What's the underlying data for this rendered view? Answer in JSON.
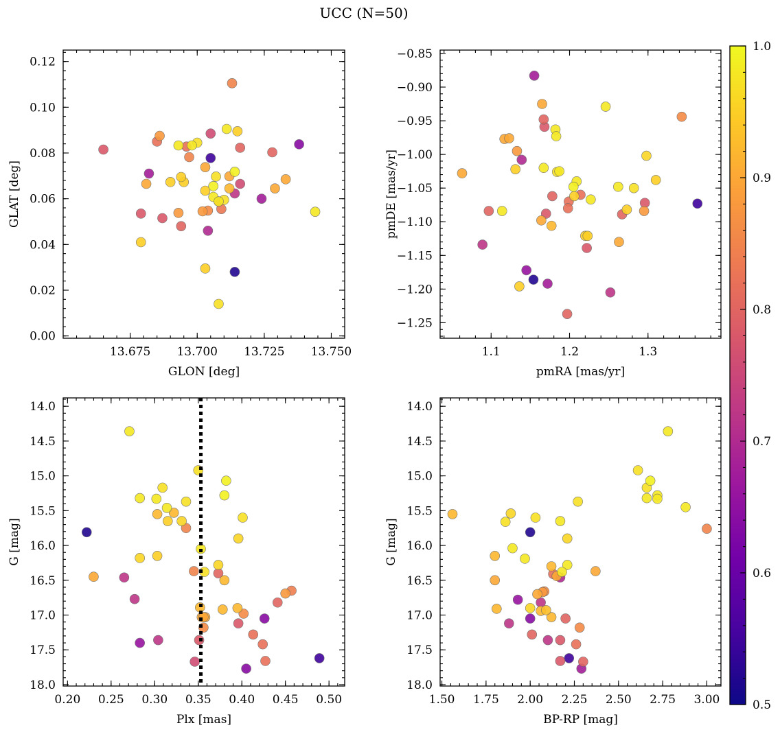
{
  "figure_title": "UCC (N=50)",
  "colors": {
    "frame": "#000000",
    "marker_edge": "#666666",
    "vline": "#000000"
  },
  "chart_data": [
    {
      "id": "glon-glat",
      "type": "scatter",
      "xlabel": "GLON [deg]",
      "ylabel": "GLAT [deg]",
      "xlim": [
        13.65,
        13.755
      ],
      "ylim": [
        -0.001,
        0.125
      ],
      "xticks": [
        13.675,
        13.7,
        13.725,
        13.75
      ],
      "xtick_labels": [
        "13.675",
        "13.700",
        "13.725",
        "13.750"
      ],
      "yticks": [
        0.0,
        0.02,
        0.04,
        0.06,
        0.08,
        0.1,
        0.12
      ],
      "ytick_labels": [
        "0.00",
        "0.02",
        "0.04",
        "0.06",
        "0.08",
        "0.10",
        "0.12"
      ],
      "x": [
        13.713,
        13.665,
        13.686,
        13.685,
        13.682,
        13.681,
        13.679,
        13.679,
        13.687,
        13.69,
        13.693,
        13.695,
        13.693,
        13.694,
        13.696,
        13.697,
        13.698,
        13.7,
        13.702,
        13.703,
        13.704,
        13.703,
        13.705,
        13.705,
        13.704,
        13.706,
        13.706,
        13.707,
        13.708,
        13.709,
        13.71,
        13.711,
        13.712,
        13.712,
        13.714,
        13.714,
        13.715,
        13.716,
        13.716,
        13.724,
        13.728,
        13.729,
        13.733,
        13.738,
        13.744,
        13.703,
        13.708,
        13.714,
        13.708,
        13.694
      ],
      "y": [
        0.1105,
        0.0815,
        0.0875,
        0.085,
        0.071,
        0.0665,
        0.0535,
        0.041,
        0.0515,
        0.0673,
        0.0833,
        0.0673,
        0.0538,
        0.048,
        0.0828,
        0.0782,
        0.0833,
        0.0845,
        0.0545,
        0.0738,
        0.046,
        0.0635,
        0.0885,
        0.0778,
        0.0548,
        0.0608,
        0.0655,
        0.0697,
        0.0588,
        0.0555,
        0.0595,
        0.0905,
        0.0645,
        0.0698,
        0.0718,
        0.0623,
        0.0895,
        0.0665,
        0.0823,
        0.06,
        0.0803,
        0.0645,
        0.0685,
        0.0838,
        0.0543,
        0.0295,
        0.014,
        0.028,
        0.0588,
        0.0695
      ],
      "c": [
        0.85,
        0.78,
        0.88,
        0.82,
        0.68,
        0.9,
        0.78,
        0.95,
        0.78,
        0.95,
        0.98,
        0.95,
        0.88,
        0.8,
        0.82,
        0.85,
        0.98,
        0.97,
        0.88,
        0.9,
        0.7,
        0.95,
        0.76,
        0.55,
        0.86,
        0.98,
        0.99,
        0.97,
        0.98,
        0.83,
        0.97,
        0.98,
        0.92,
        0.9,
        0.99,
        0.72,
        0.95,
        0.76,
        0.8,
        0.68,
        0.8,
        0.9,
        0.9,
        0.64,
        0.98,
        0.95,
        0.97,
        0.52,
        0.82,
        0.95
      ]
    },
    {
      "id": "pmra-pmde",
      "type": "scatter",
      "xlabel": "pmRA [mas/yr]",
      "ylabel": "pmDE [mas/yr]",
      "xlim": [
        1.035,
        1.393
      ],
      "ylim": [
        -1.273,
        -0.845
      ],
      "xticks": [
        1.1,
        1.2,
        1.3
      ],
      "xtick_labels": [
        "1.1",
        "1.2",
        "1.3"
      ],
      "yticks": [
        -1.25,
        -1.2,
        -1.15,
        -1.1,
        -1.05,
        -1.0,
        -0.95,
        -0.9,
        -0.85
      ],
      "ytick_labels": [
        "−1.25",
        "−1.20",
        "−1.15",
        "−1.10",
        "−1.05",
        "−1.00",
        "−0.95",
        "−0.90",
        "−0.85"
      ],
      "x": [
        1.155,
        1.165,
        1.167,
        1.168,
        1.182,
        1.183,
        1.117,
        1.123,
        1.133,
        1.139,
        1.131,
        1.167,
        1.184,
        1.187,
        1.209,
        1.205,
        1.214,
        1.206,
        1.199,
        1.198,
        1.227,
        1.246,
        1.262,
        1.263,
        1.267,
        1.273,
        1.282,
        1.295,
        1.296,
        1.298,
        1.31,
        1.343,
        1.363,
        1.063,
        1.097,
        1.114,
        1.164,
        1.17,
        1.177,
        1.178,
        1.22,
        1.222,
        1.252,
        1.154,
        1.172,
        1.197,
        1.089,
        1.145,
        1.136,
        1.223
      ],
      "y": [
        -0.883,
        -0.925,
        -0.948,
        -0.959,
        -0.963,
        -0.973,
        -0.977,
        -0.976,
        -0.995,
        -1.008,
        -1.022,
        -1.02,
        -1.026,
        -1.025,
        -1.04,
        -1.048,
        -1.06,
        -1.062,
        -1.07,
        -1.08,
        -1.067,
        -0.929,
        -1.048,
        -1.13,
        -1.089,
        -1.082,
        -1.05,
        -1.084,
        -1.072,
        -1.002,
        -1.038,
        -0.944,
        -1.073,
        -1.028,
        -1.084,
        -1.084,
        -1.098,
        -1.088,
        -1.106,
        -1.062,
        -1.121,
        -1.139,
        -1.205,
        -1.186,
        -1.192,
        -1.237,
        -1.134,
        -1.172,
        -1.196,
        -1.121
      ],
      "c": [
        0.68,
        0.9,
        0.8,
        0.78,
        0.98,
        0.98,
        0.9,
        0.9,
        0.88,
        0.7,
        0.95,
        0.98,
        0.97,
        0.98,
        0.98,
        0.99,
        0.82,
        0.95,
        0.82,
        0.82,
        0.98,
        0.98,
        0.98,
        0.9,
        0.8,
        0.95,
        0.97,
        0.88,
        0.78,
        0.96,
        0.95,
        0.86,
        0.55,
        0.9,
        0.8,
        0.98,
        0.9,
        0.78,
        0.92,
        0.8,
        0.95,
        0.78,
        0.72,
        0.52,
        0.68,
        0.8,
        0.72,
        0.66,
        0.95,
        0.95
      ]
    },
    {
      "id": "plx-g",
      "type": "scatter",
      "xlabel": "Plx [mas]",
      "ylabel": "G [mag]",
      "xlim": [
        0.195,
        0.518
      ],
      "ylim": [
        18.02,
        13.88
      ],
      "inverted_y": true,
      "xticks": [
        0.2,
        0.25,
        0.3,
        0.35,
        0.4,
        0.45,
        0.5
      ],
      "xtick_labels": [
        "0.20",
        "0.25",
        "0.30",
        "0.35",
        "0.40",
        "0.45",
        "0.50"
      ],
      "yticks": [
        14.0,
        14.5,
        15.0,
        15.5,
        16.0,
        16.5,
        17.0,
        17.5,
        18.0
      ],
      "ytick_labels": [
        "14.0",
        "14.5",
        "15.0",
        "15.5",
        "16.0",
        "16.5",
        "17.0",
        "17.5",
        "18.0"
      ],
      "vline": {
        "x": 0.353,
        "style": "dotted"
      },
      "x": [
        0.271,
        0.35,
        0.382,
        0.309,
        0.283,
        0.302,
        0.314,
        0.336,
        0.38,
        0.303,
        0.322,
        0.315,
        0.401,
        0.222,
        0.331,
        0.353,
        0.396,
        0.373,
        0.283,
        0.303,
        0.357,
        0.345,
        0.23,
        0.373,
        0.38,
        0.265,
        0.378,
        0.277,
        0.395,
        0.352,
        0.402,
        0.358,
        0.356,
        0.426,
        0.457,
        0.45,
        0.441,
        0.396,
        0.413,
        0.424,
        0.283,
        0.304,
        0.351,
        0.346,
        0.427,
        0.405,
        0.489,
        0.354,
        0.356,
        0.336
      ],
      "y": [
        14.36,
        14.92,
        15.07,
        15.17,
        15.32,
        15.33,
        15.46,
        15.37,
        15.28,
        15.55,
        15.53,
        15.65,
        15.6,
        15.81,
        15.65,
        16.05,
        15.9,
        16.28,
        16.18,
        16.15,
        16.38,
        16.37,
        16.45,
        16.4,
        16.5,
        16.46,
        16.92,
        16.77,
        16.9,
        16.89,
        16.98,
        17.03,
        17.18,
        17.05,
        16.65,
        16.69,
        16.82,
        17.12,
        17.28,
        17.42,
        17.4,
        17.36,
        17.36,
        17.67,
        17.66,
        17.77,
        17.62,
        17.03,
        17.03,
        15.75
      ],
      "c": [
        0.98,
        0.97,
        0.99,
        0.97,
        0.98,
        0.98,
        0.98,
        0.97,
        0.99,
        0.92,
        0.92,
        0.95,
        0.97,
        0.52,
        0.96,
        0.98,
        0.96,
        0.96,
        0.96,
        0.95,
        0.97,
        0.85,
        0.9,
        0.8,
        0.92,
        0.72,
        0.92,
        0.72,
        0.92,
        0.92,
        0.86,
        0.9,
        0.86,
        0.64,
        0.84,
        0.88,
        0.8,
        0.78,
        0.82,
        0.82,
        0.66,
        0.72,
        0.78,
        0.76,
        0.82,
        0.64,
        0.55,
        0.9,
        0.9,
        0.85
      ]
    },
    {
      "id": "bprp-g",
      "type": "scatter",
      "xlabel": "BP-RP [mag]",
      "ylabel": "G [mag]",
      "xlim": [
        1.49,
        3.08
      ],
      "ylim": [
        18.02,
        13.88
      ],
      "inverted_y": true,
      "xticks": [
        1.5,
        1.75,
        2.0,
        2.25,
        2.5,
        2.75,
        3.0
      ],
      "xtick_labels": [
        "1.50",
        "1.75",
        "2.00",
        "2.25",
        "2.50",
        "2.75",
        "3.00"
      ],
      "yticks": [
        14.0,
        14.5,
        15.0,
        15.5,
        16.0,
        16.5,
        17.0,
        17.5,
        18.0
      ],
      "ytick_labels": [
        "14.0",
        "14.5",
        "15.0",
        "15.5",
        "16.0",
        "16.5",
        "17.0",
        "17.5",
        "18.0"
      ],
      "x": [
        2.78,
        2.61,
        2.68,
        2.66,
        2.72,
        2.66,
        2.72,
        2.27,
        2.88,
        3.0,
        1.56,
        1.89,
        1.86,
        2.03,
        2.0,
        2.17,
        2.21,
        1.9,
        1.97,
        2.21,
        1.8,
        2.12,
        2.18,
        2.15,
        2.37,
        2.13,
        1.8,
        2.0,
        2.09,
        2.08,
        1.81,
        2.04,
        2.07,
        2.06,
        2.17,
        1.93,
        2.06,
        1.88,
        2.12,
        2.2,
        2.0,
        2.26,
        2.01,
        2.1,
        2.17,
        2.28,
        2.17,
        2.22,
        2.3,
        2.29
      ],
      "y": [
        14.36,
        14.92,
        15.07,
        15.17,
        15.28,
        15.32,
        15.33,
        15.37,
        15.45,
        15.76,
        15.55,
        15.54,
        15.66,
        15.6,
        15.81,
        15.65,
        15.9,
        16.04,
        16.19,
        16.28,
        16.15,
        16.3,
        16.38,
        16.44,
        16.37,
        16.41,
        16.5,
        16.9,
        16.93,
        16.66,
        16.91,
        16.7,
        16.67,
        16.82,
        16.46,
        16.78,
        16.94,
        17.12,
        17.03,
        17.05,
        17.05,
        17.42,
        17.28,
        17.36,
        17.36,
        17.18,
        17.66,
        17.62,
        17.67,
        17.77
      ],
      "c": [
        0.98,
        0.97,
        0.99,
        0.97,
        0.98,
        0.98,
        0.98,
        0.97,
        0.98,
        0.85,
        0.92,
        0.96,
        0.97,
        0.97,
        0.52,
        0.98,
        0.96,
        0.98,
        0.98,
        0.98,
        0.92,
        0.92,
        0.98,
        0.9,
        0.9,
        0.82,
        0.9,
        0.96,
        0.93,
        0.86,
        0.92,
        0.9,
        0.88,
        0.72,
        0.7,
        0.66,
        0.92,
        0.72,
        0.92,
        0.8,
        0.64,
        0.82,
        0.8,
        0.72,
        0.78,
        0.86,
        0.78,
        0.55,
        0.8,
        0.68
      ]
    }
  ],
  "colorbar": {
    "cmap": "plasma",
    "range": [
      0.5,
      1.0
    ],
    "ticks": [
      0.5,
      0.6,
      0.7,
      0.8,
      0.9,
      1.0
    ],
    "tick_labels": [
      "0.5",
      "0.6",
      "0.7",
      "0.8",
      "0.9",
      "1.0"
    ],
    "colors": [
      "#0d0887",
      "#46039f",
      "#7201a8",
      "#9c179e",
      "#bd3786",
      "#d8576b",
      "#ed7953",
      "#fb9f3a",
      "#fdca26",
      "#f0f921"
    ]
  }
}
